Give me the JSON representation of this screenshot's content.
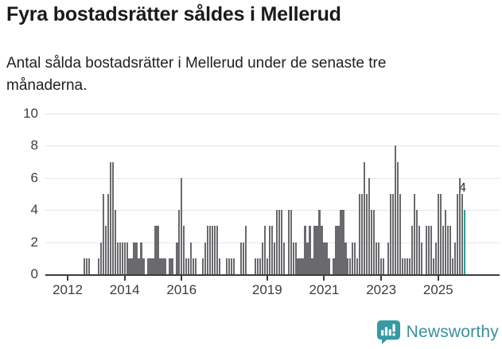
{
  "header": {
    "title": "Fyra bostadsrätter såldes i Mellerud",
    "subtitle": "Antal sålda bostadsrätter i Mellerud under de senaste tre månaderna."
  },
  "footer": {
    "brand": "Newsworthy"
  },
  "colors": {
    "bar": "#6a6a6e",
    "highlight": "#2a9d9f",
    "grid": "#e7e7e7",
    "axis": "#3d3d3d",
    "title_text": "#1a1a1a",
    "body_text": "#212121",
    "annotation_text": "#2e2e2e",
    "brand_icon": "#359aa4",
    "brand_text": "#3b8f9c"
  },
  "chart_data": {
    "type": "bar",
    "title": "Fyra bostadsrätter såldes i Mellerud",
    "subtitle": "Antal sålda bostadsrätter i Mellerud under de senaste tre månaderna.",
    "resolution": "monthly",
    "x_start_year": 2012,
    "xticks": [
      2012,
      2014,
      2016,
      2019,
      2021,
      2023,
      2025
    ],
    "yticks": [
      0,
      2,
      4,
      6,
      8,
      10
    ],
    "ylim": [
      0,
      10
    ],
    "grid": "horizontal",
    "legend": "none",
    "values": [
      0,
      0,
      0,
      0,
      0,
      0,
      0,
      1,
      1,
      1,
      0,
      0,
      0,
      1,
      2,
      5,
      3,
      5,
      7,
      7,
      4,
      2,
      2,
      2,
      2,
      2,
      1,
      1,
      2,
      2,
      1,
      2,
      1,
      0,
      1,
      1,
      1,
      3,
      3,
      1,
      1,
      1,
      0,
      1,
      1,
      0,
      2,
      4,
      6,
      3,
      1,
      1,
      2,
      1,
      1,
      0,
      0,
      1,
      2,
      3,
      3,
      3,
      3,
      3,
      1,
      0,
      0,
      1,
      1,
      1,
      1,
      0,
      0,
      2,
      2,
      3,
      0,
      0,
      0,
      1,
      1,
      1,
      2,
      3,
      1,
      3,
      3,
      2,
      4,
      4,
      4,
      2,
      0,
      4,
      4,
      2,
      2,
      1,
      1,
      1,
      3,
      2,
      3,
      1,
      3,
      3,
      4,
      3,
      2,
      2,
      1,
      0,
      1,
      3,
      3,
      4,
      4,
      2,
      1,
      1,
      2,
      2,
      1,
      5,
      5,
      7,
      5,
      6,
      4,
      4,
      2,
      2,
      1,
      1,
      0,
      2,
      5,
      5,
      8,
      7,
      5,
      1,
      1,
      1,
      1,
      3,
      5,
      4,
      3,
      2,
      0,
      3,
      3,
      3,
      1,
      2,
      5,
      5,
      3,
      4,
      3,
      3,
      1,
      2,
      5,
      6,
      5,
      4
    ],
    "highlighted_last_value": 4,
    "annotation_label": "4"
  }
}
